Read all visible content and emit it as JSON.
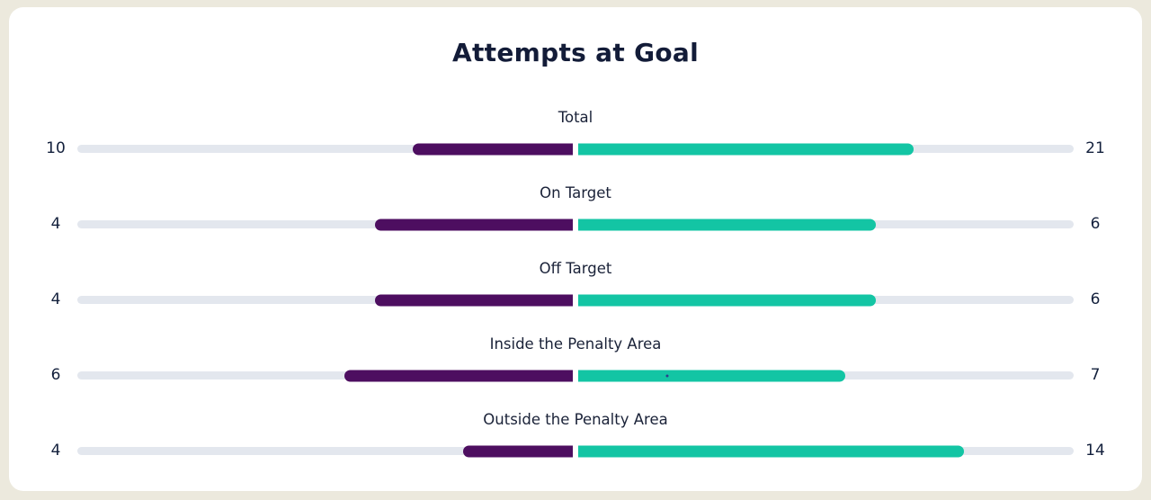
{
  "page": {
    "background_color": "#ece9dd",
    "card_background_color": "#ffffff"
  },
  "chart_data": {
    "type": "bar",
    "variant": "bilateral-horizontal-progress",
    "title": "Attempts at Goal",
    "grid": false,
    "legend_position": "none",
    "categories": [
      "Total",
      "On Target",
      "Off Target",
      "Inside the Penalty Area",
      "Outside the Penalty Area"
    ],
    "series": [
      {
        "name": "left",
        "values": [
          10,
          4,
          4,
          6,
          4
        ]
      },
      {
        "name": "right",
        "values": [
          21,
          6,
          6,
          7,
          14
        ]
      }
    ],
    "scaling": "bar width = value / (left + right) of each half track",
    "marker": {
      "category": "Inside the Penalty Area",
      "side": "right",
      "offset_pct": 18
    },
    "colors": {
      "left_bar": "#4d0e60",
      "right_bar": "#13c5a4",
      "track": "#e3e7ee",
      "text": "#13203c",
      "title_text": "#131c38",
      "marker_dot": "#2b3f8c"
    }
  }
}
